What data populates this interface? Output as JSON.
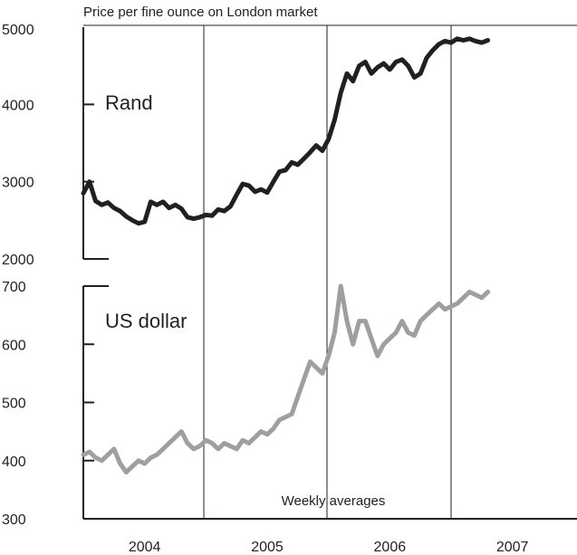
{
  "chart_data": [
    {
      "type": "line",
      "title": "Price per fine ounce on London market",
      "annotation": "Weekly averages",
      "series_label": "Rand",
      "color": "#231f20",
      "ylim": [
        2000,
        5000
      ],
      "yticks": [
        {
          "value": 2000,
          "label": "2000"
        },
        {
          "value": 3000,
          "label": "3000"
        },
        {
          "value": 4000,
          "label": "4000"
        },
        {
          "value": 5000,
          "label": "5000"
        }
      ],
      "x": [
        2004.0,
        2004.05,
        2004.1,
        2004.15,
        2004.2,
        2004.25,
        2004.3,
        2004.35,
        2004.4,
        2004.45,
        2004.5,
        2004.55,
        2004.6,
        2004.65,
        2004.7,
        2004.75,
        2004.8,
        2004.85,
        2004.9,
        2004.95,
        2005.0,
        2005.05,
        2005.1,
        2005.15,
        2005.2,
        2005.25,
        2005.3,
        2005.35,
        2005.4,
        2005.45,
        2005.5,
        2005.55,
        2005.6,
        2005.65,
        2005.7,
        2005.75,
        2005.8,
        2005.85,
        2005.9,
        2005.95,
        2006.0,
        2006.05,
        2006.1,
        2006.15,
        2006.2,
        2006.25,
        2006.3,
        2006.35,
        2006.4,
        2006.45,
        2006.5,
        2006.55,
        2006.6,
        2006.65,
        2006.7,
        2006.75,
        2006.8,
        2006.85,
        2006.9,
        2006.95,
        2007.0,
        2007.05,
        2007.1,
        2007.15,
        2007.2,
        2007.25,
        2007.3
      ],
      "values": [
        2850,
        3000,
        2750,
        2700,
        2730,
        2660,
        2620,
        2550,
        2500,
        2460,
        2480,
        2740,
        2700,
        2740,
        2660,
        2700,
        2650,
        2540,
        2520,
        2540,
        2570,
        2560,
        2640,
        2620,
        2680,
        2830,
        2970,
        2950,
        2870,
        2900,
        2860,
        3000,
        3130,
        3150,
        3250,
        3220,
        3300,
        3380,
        3470,
        3400,
        3550,
        3800,
        4150,
        4400,
        4300,
        4500,
        4550,
        4400,
        4480,
        4530,
        4450,
        4550,
        4580,
        4500,
        4350,
        4400,
        4600,
        4700,
        4780,
        4820,
        4800,
        4850,
        4830,
        4850,
        4820,
        4800,
        4830
      ]
    },
    {
      "type": "line",
      "series_label": "US dollar",
      "color": "#9d9fa2",
      "ylim": [
        300,
        700
      ],
      "yticks": [
        {
          "value": 300,
          "label": "300"
        },
        {
          "value": 400,
          "label": "400"
        },
        {
          "value": 500,
          "label": "500"
        },
        {
          "value": 600,
          "label": "600"
        },
        {
          "value": 700,
          "label": "700"
        }
      ],
      "xticks": [
        {
          "value": 2004.0,
          "label": "2004"
        },
        {
          "value": 2005.0,
          "label": "2005"
        },
        {
          "value": 2006.0,
          "label": "2006"
        },
        {
          "value": 2007.0,
          "label": "2007"
        }
      ],
      "x": [
        2004.0,
        2004.05,
        2004.1,
        2004.15,
        2004.2,
        2004.25,
        2004.3,
        2004.35,
        2004.4,
        2004.45,
        2004.5,
        2004.55,
        2004.6,
        2004.65,
        2004.7,
        2004.75,
        2004.8,
        2004.85,
        2004.9,
        2004.95,
        2005.0,
        2005.05,
        2005.1,
        2005.15,
        2005.2,
        2005.25,
        2005.3,
        2005.35,
        2005.4,
        2005.45,
        2005.5,
        2005.55,
        2005.6,
        2005.65,
        2005.7,
        2005.75,
        2005.8,
        2005.85,
        2005.9,
        2005.95,
        2006.0,
        2006.05,
        2006.1,
        2006.15,
        2006.2,
        2006.25,
        2006.3,
        2006.35,
        2006.4,
        2006.45,
        2006.5,
        2006.55,
        2006.6,
        2006.65,
        2006.7,
        2006.75,
        2006.8,
        2006.85,
        2006.9,
        2006.95,
        2007.0,
        2007.05,
        2007.1,
        2007.15,
        2007.2,
        2007.25,
        2007.3
      ],
      "values": [
        410,
        415,
        405,
        400,
        410,
        420,
        395,
        380,
        390,
        400,
        395,
        405,
        410,
        420,
        430,
        440,
        450,
        430,
        420,
        425,
        435,
        430,
        420,
        430,
        425,
        420,
        435,
        430,
        440,
        450,
        445,
        455,
        470,
        475,
        480,
        510,
        540,
        570,
        560,
        550,
        580,
        620,
        700,
        640,
        600,
        640,
        640,
        610,
        580,
        600,
        610,
        620,
        640,
        620,
        615,
        640,
        650,
        660,
        670,
        660,
        665,
        670,
        680,
        690,
        685,
        680,
        690
      ]
    }
  ]
}
